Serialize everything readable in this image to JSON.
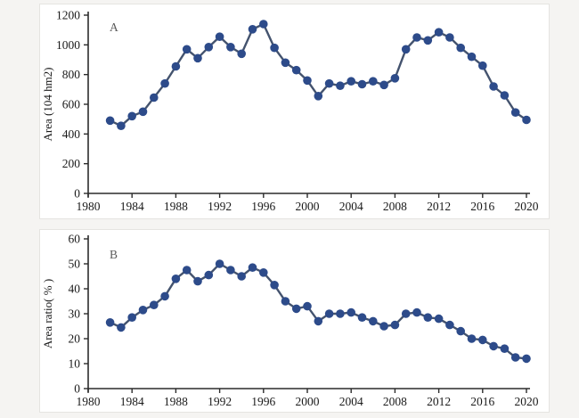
{
  "page": {
    "background_color": "#f5f4f2",
    "panel_background": "#ffffff",
    "panel_border_color": "#e5e4e1"
  },
  "styles": {
    "marker_color": "#2d4b8a",
    "line_color": "#44536e",
    "axis_color": "#2b2b2b",
    "tick_label_color": "#1a1a1a",
    "panel_label_color": "#5a5a5a"
  },
  "chart_data": [
    {
      "id": "A",
      "type": "line",
      "panel_label": "A",
      "title": "",
      "xlabel": "",
      "ylabel": "Area (104 hm2)",
      "ylim": [
        0,
        1200
      ],
      "yticks": [
        0,
        200,
        400,
        600,
        800,
        1000,
        1200
      ],
      "xlim": [
        1980,
        2020
      ],
      "xticks": [
        1980,
        1984,
        1988,
        1992,
        1996,
        2000,
        2004,
        2008,
        2012,
        2016,
        2020
      ],
      "grid": false,
      "legend": "none",
      "years": [
        1982,
        1983,
        1984,
        1985,
        1986,
        1987,
        1988,
        1989,
        1990,
        1991,
        1992,
        1993,
        1994,
        1995,
        1996,
        1997,
        1998,
        1999,
        2000,
        2001,
        2002,
        2003,
        2004,
        2005,
        2006,
        2007,
        2008,
        2009,
        2010,
        2011,
        2012,
        2013,
        2014,
        2015,
        2016,
        2017,
        2018,
        2019,
        2020
      ],
      "values": [
        490,
        455,
        520,
        550,
        645,
        740,
        855,
        970,
        910,
        985,
        1055,
        985,
        940,
        1105,
        1140,
        980,
        880,
        830,
        760,
        655,
        740,
        725,
        755,
        735,
        755,
        730,
        775,
        970,
        1050,
        1030,
        1085,
        1050,
        980,
        920,
        860,
        720,
        660,
        545,
        495
      ]
    },
    {
      "id": "B",
      "type": "line",
      "panel_label": "B",
      "title": "",
      "xlabel": "",
      "ylabel": "Area ratio( % )",
      "ylim": [
        0,
        60
      ],
      "yticks": [
        0,
        10,
        20,
        30,
        40,
        50,
        60
      ],
      "xlim": [
        1980,
        2020
      ],
      "xticks": [
        1980,
        1984,
        1988,
        1992,
        1996,
        2000,
        2004,
        2008,
        2012,
        2016,
        2020
      ],
      "grid": false,
      "legend": "none",
      "years": [
        1982,
        1983,
        1984,
        1985,
        1986,
        1987,
        1988,
        1989,
        1990,
        1991,
        1992,
        1993,
        1994,
        1995,
        1996,
        1997,
        1998,
        1999,
        2000,
        2001,
        2002,
        2003,
        2004,
        2005,
        2006,
        2007,
        2008,
        2009,
        2010,
        2011,
        2012,
        2013,
        2014,
        2015,
        2016,
        2017,
        2018,
        2019,
        2020
      ],
      "values": [
        26.5,
        24.5,
        28.5,
        31.5,
        33.5,
        37,
        44,
        47.5,
        43,
        45.5,
        50,
        47.5,
        45,
        48.5,
        46.5,
        41.5,
        35,
        32,
        33,
        27,
        30,
        30,
        30.5,
        28.5,
        27,
        25,
        25.5,
        30,
        30.5,
        28.5,
        28,
        25.5,
        23,
        20,
        19.5,
        17,
        16,
        12.5,
        12
      ]
    }
  ]
}
